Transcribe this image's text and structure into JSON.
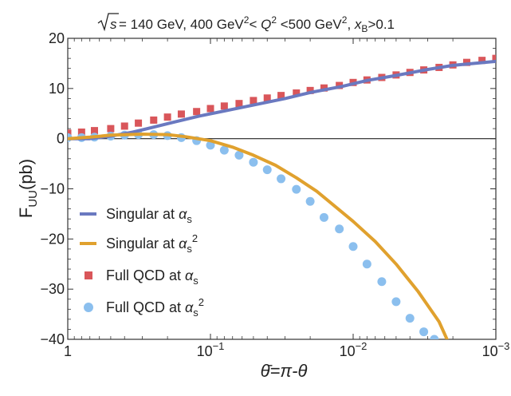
{
  "chart_data": {
    "type": "line",
    "title": {
      "sqrt": "s",
      "parts": [
        {
          "t": " = 140 GeV, 400 GeV"
        },
        {
          "t": "2",
          "s": "sup"
        },
        {
          "t": "< "
        },
        {
          "t": "Q",
          "s": "ital"
        },
        {
          "t": "2",
          "s": "sup"
        },
        {
          "t": " <500 GeV"
        },
        {
          "t": "2",
          "s": "sup"
        },
        {
          "t": ", "
        },
        {
          "t": "x",
          "s": "ital"
        },
        {
          "t": "B",
          "s": "sub"
        },
        {
          "t": ">0.1"
        }
      ]
    },
    "xlabel": "θ̄=π-θ",
    "ylabel": {
      "base": "F",
      "sub": "UU",
      "rest": "(pb)"
    },
    "x_scale": "log",
    "x_reversed": true,
    "xlim": [
      1,
      0.001
    ],
    "ylim": [
      -40,
      20
    ],
    "grid": false,
    "legend_position": "lower-left",
    "x_ticks": [
      {
        "value": 1,
        "parts": [
          {
            "t": "1"
          }
        ]
      },
      {
        "value": 0.1,
        "parts": [
          {
            "t": "10"
          },
          {
            "t": "−1",
            "s": "sup"
          }
        ]
      },
      {
        "value": 0.01,
        "parts": [
          {
            "t": "10"
          },
          {
            "t": "−2",
            "s": "sup"
          }
        ]
      },
      {
        "value": 0.001,
        "parts": [
          {
            "t": "10"
          },
          {
            "t": "−3",
            "s": "sup"
          }
        ]
      }
    ],
    "y_ticks": [
      {
        "value": 20,
        "label": "20"
      },
      {
        "value": 10,
        "label": "10"
      },
      {
        "value": 0,
        "label": "0"
      },
      {
        "value": -10,
        "label": "−10"
      },
      {
        "value": -20,
        "label": "−20"
      },
      {
        "value": -30,
        "label": "−30"
      },
      {
        "value": -40,
        "label": "−40"
      }
    ],
    "series": [
      {
        "name": [
          {
            "t": "Singular at "
          },
          {
            "t": "α",
            "s": "ital"
          },
          {
            "t": "s",
            "s": "sub"
          }
        ],
        "style": "line",
        "color": "#6a79c0",
        "x": [
          1,
          0.7,
          0.5,
          0.35,
          0.25,
          0.18,
          0.12,
          0.08,
          0.05,
          0.03,
          0.02,
          0.012,
          0.008,
          0.005,
          0.003,
          0.002,
          0.001
        ],
        "y": [
          0,
          0,
          0.5,
          1.3,
          2.3,
          3.3,
          4.5,
          5.5,
          6.7,
          8.0,
          9.2,
          10.4,
          11.6,
          12.6,
          13.8,
          14.6,
          15.4
        ]
      },
      {
        "name": [
          {
            "t": "Singular at "
          },
          {
            "t": "α",
            "s": "ital"
          },
          {
            "t": "s",
            "s": "sub"
          },
          {
            "t": "2",
            "s": "sup"
          }
        ],
        "style": "line",
        "color": "#e0a12e",
        "x": [
          1,
          0.7,
          0.5,
          0.3,
          0.2,
          0.15,
          0.1,
          0.07,
          0.05,
          0.035,
          0.025,
          0.018,
          0.013,
          0.01,
          0.007,
          0.005,
          0.0035,
          0.0025,
          0.0022
        ],
        "y": [
          0,
          0.3,
          0.7,
          0.9,
          0.8,
          0.4,
          -0.4,
          -1.7,
          -3.3,
          -5.3,
          -7.8,
          -10.5,
          -13.8,
          -16.5,
          -20.5,
          -25.0,
          -30.5,
          -36.5,
          -40.0
        ]
      },
      {
        "name": [
          {
            "t": "Full QCD at "
          },
          {
            "t": "α",
            "s": "ital"
          },
          {
            "t": "s",
            "s": "sub"
          }
        ],
        "style": "squares",
        "color": "#d9565a",
        "x": [
          1,
          0.8,
          0.65,
          0.5,
          0.4,
          0.32,
          0.25,
          0.2,
          0.16,
          0.125,
          0.1,
          0.08,
          0.063,
          0.05,
          0.04,
          0.032,
          0.025,
          0.02,
          0.016,
          0.0125,
          0.01,
          0.008,
          0.0063,
          0.005,
          0.004,
          0.0032,
          0.0025,
          0.002,
          0.0016,
          0.00125,
          0.001
        ],
        "y": [
          1.1,
          1.3,
          1.6,
          2.0,
          2.5,
          3.1,
          3.7,
          4.3,
          4.9,
          5.4,
          6.0,
          6.5,
          7.0,
          7.6,
          8.1,
          8.6,
          9.1,
          9.6,
          10.1,
          10.6,
          11.2,
          11.7,
          12.2,
          12.7,
          13.2,
          13.7,
          14.2,
          14.7,
          15.2,
          15.6,
          16.0
        ]
      },
      {
        "name": [
          {
            "t": "Full QCD at "
          },
          {
            "t": "α",
            "s": "ital"
          },
          {
            "t": "s",
            "s": "sub"
          },
          {
            "t": "2",
            "s": "sup"
          }
        ],
        "style": "circles",
        "color": "#8bbfee",
        "x": [
          1,
          0.8,
          0.65,
          0.5,
          0.4,
          0.32,
          0.25,
          0.2,
          0.16,
          0.125,
          0.1,
          0.08,
          0.063,
          0.05,
          0.04,
          0.032,
          0.025,
          0.02,
          0.016,
          0.0125,
          0.01,
          0.008,
          0.0063,
          0.005,
          0.004,
          0.0032,
          0.0027
        ],
        "y": [
          0.2,
          0.2,
          0.3,
          0.5,
          0.7,
          0.8,
          0.8,
          0.6,
          0.2,
          -0.4,
          -1.3,
          -2.3,
          -3.3,
          -4.7,
          -6.2,
          -8.0,
          -10.1,
          -12.5,
          -15.7,
          -18.0,
          -21.5,
          -25.0,
          -28.5,
          -32.5,
          -35.8,
          -38.5,
          -40.0
        ]
      }
    ]
  }
}
